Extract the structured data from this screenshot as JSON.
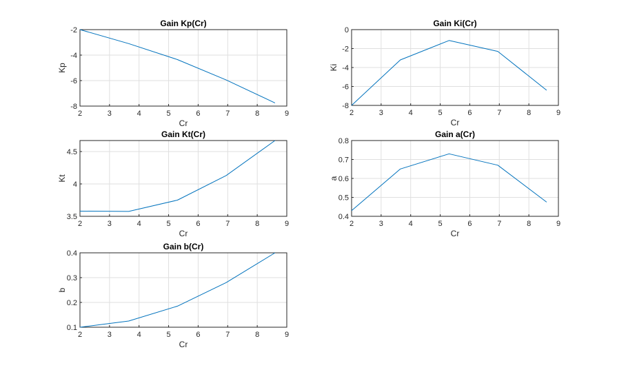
{
  "chart_data": [
    {
      "type": "line",
      "title": "Gain Kp(Cr)",
      "xlabel": "Cr",
      "ylabel": "Kp",
      "xlim": [
        2,
        9
      ],
      "ylim": [
        -8,
        -2
      ],
      "xticks": [
        2,
        3,
        4,
        5,
        6,
        7,
        8,
        9
      ],
      "yticks": [
        -8,
        -6,
        -4,
        -2
      ],
      "grid": true,
      "series": [
        {
          "x": [
            2.0,
            3.65,
            5.3,
            6.95,
            8.6
          ],
          "values": [
            -2.0,
            -3.1,
            -4.35,
            -5.95,
            -7.75
          ],
          "color": "#0072bd"
        }
      ]
    },
    {
      "type": "line",
      "title": "Gain Ki(Cr)",
      "xlabel": "Cr",
      "ylabel": "Ki",
      "xlim": [
        2,
        9
      ],
      "ylim": [
        -8,
        0
      ],
      "xticks": [
        2,
        3,
        4,
        5,
        6,
        7,
        8,
        9
      ],
      "yticks": [
        -8,
        -6,
        -4,
        -2,
        0
      ],
      "grid": true,
      "series": [
        {
          "x": [
            2.0,
            3.65,
            5.3,
            6.95,
            8.6
          ],
          "values": [
            -8.0,
            -3.2,
            -1.15,
            -2.3,
            -6.4
          ],
          "color": "#0072bd"
        }
      ]
    },
    {
      "type": "line",
      "title": "Gain Kt(Cr)",
      "xlabel": "Cr",
      "ylabel": "Kt",
      "xlim": [
        2,
        9
      ],
      "ylim": [
        3.5,
        4.67
      ],
      "xticks": [
        2,
        3,
        4,
        5,
        6,
        7,
        8,
        9
      ],
      "yticks": [
        3.5,
        4,
        4.5
      ],
      "grid": true,
      "series": [
        {
          "x": [
            2.0,
            3.65,
            5.3,
            6.95,
            8.6
          ],
          "values": [
            3.58,
            3.575,
            3.75,
            4.13,
            4.67
          ],
          "color": "#0072bd"
        }
      ]
    },
    {
      "type": "line",
      "title": "Gain a(Cr)",
      "xlabel": "Cr",
      "ylabel": "a",
      "xlim": [
        2,
        9
      ],
      "ylim": [
        0.4,
        0.8
      ],
      "xticks": [
        2,
        3,
        4,
        5,
        6,
        7,
        8,
        9
      ],
      "yticks": [
        0.4,
        0.5,
        0.6,
        0.7,
        0.8
      ],
      "grid": true,
      "series": [
        {
          "x": [
            2.0,
            3.65,
            5.3,
            6.95,
            8.6
          ],
          "values": [
            0.43,
            0.65,
            0.73,
            0.67,
            0.475
          ],
          "color": "#0072bd"
        }
      ]
    },
    {
      "type": "line",
      "title": "Gain b(Cr)",
      "xlabel": "Cr",
      "ylabel": "b",
      "xlim": [
        2,
        9
      ],
      "ylim": [
        0.1,
        0.4
      ],
      "xticks": [
        2,
        3,
        4,
        5,
        6,
        7,
        8,
        9
      ],
      "yticks": [
        0.1,
        0.2,
        0.3,
        0.4
      ],
      "grid": true,
      "series": [
        {
          "x": [
            2.0,
            3.65,
            5.3,
            6.95,
            8.6
          ],
          "values": [
            0.1,
            0.125,
            0.185,
            0.28,
            0.4
          ],
          "color": "#0072bd"
        }
      ]
    }
  ]
}
